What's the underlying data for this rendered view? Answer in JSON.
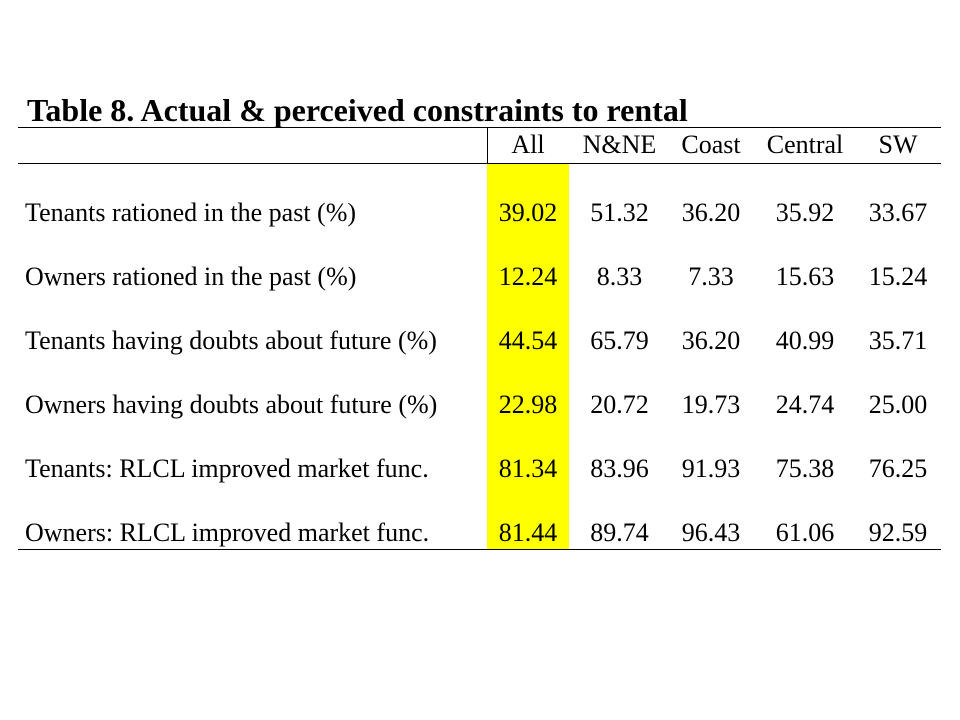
{
  "title": "Table 8.  Actual & perceived constraints to rental",
  "colors": {
    "highlight": "#ffff00",
    "text": "#000000",
    "background": "#ffffff"
  },
  "table": {
    "headers": [
      "All",
      "N&NE",
      "Coast",
      "Central",
      "SW"
    ],
    "rows": [
      {
        "label": "Tenants rationed in the past (%)",
        "values": [
          "39.02",
          "51.32",
          "36.20",
          "35.92",
          "33.67"
        ]
      },
      {
        "label": "Owners rationed in the past (%)",
        "values": [
          "12.24",
          "8.33",
          "7.33",
          "15.63",
          "15.24"
        ]
      },
      {
        "label": "Tenants having doubts about future (%)",
        "values": [
          "44.54",
          "65.79",
          "36.20",
          "40.99",
          "35.71"
        ]
      },
      {
        "label": "Owners having doubts about future (%)",
        "values": [
          "22.98",
          "20.72",
          "19.73",
          "24.74",
          "25.00"
        ]
      },
      {
        "label": "Tenants: RLCL improved market func.",
        "values": [
          "81.34",
          "83.96",
          "91.93",
          "75.38",
          "76.25"
        ]
      },
      {
        "label": "Owners: RLCL improved market func.",
        "values": [
          "81.44",
          "89.74",
          "96.43",
          "61.06",
          "92.59"
        ]
      }
    ]
  }
}
